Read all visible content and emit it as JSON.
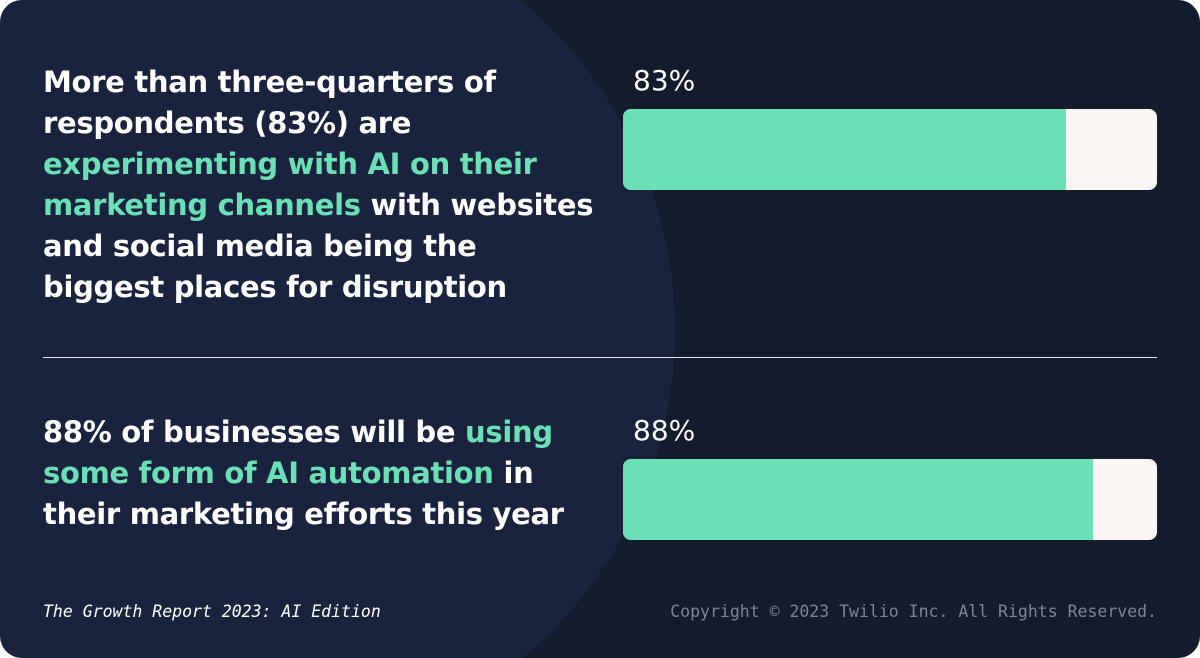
{
  "colors": {
    "background": "#131c2d",
    "circle": "#19233d",
    "accent": "#6bdfb5",
    "track": "#fbf6f3"
  },
  "stats": [
    {
      "pre": "More than three-quarters of respondents (83%) are ",
      "highlight": "experimenting with AI on their marketing channels",
      "post": " with websites and social media being the biggest places for disruption",
      "label": "83%",
      "value": 83
    },
    {
      "pre": "88% of businesses will be ",
      "highlight": "using some form of AI automation",
      "post": " in their marketing efforts this year",
      "label": "88%",
      "value": 88
    }
  ],
  "chart_data": {
    "type": "bar",
    "orientation": "horizontal",
    "categories": [
      "experimenting with AI on their marketing channels",
      "using some form of AI automation"
    ],
    "values": [
      83,
      88
    ],
    "ylim": [
      0,
      100
    ]
  },
  "footer": {
    "source": "The Growth Report 2023: AI Edition",
    "copyright": "Copyright © 2023 Twilio Inc. All Rights Reserved."
  }
}
